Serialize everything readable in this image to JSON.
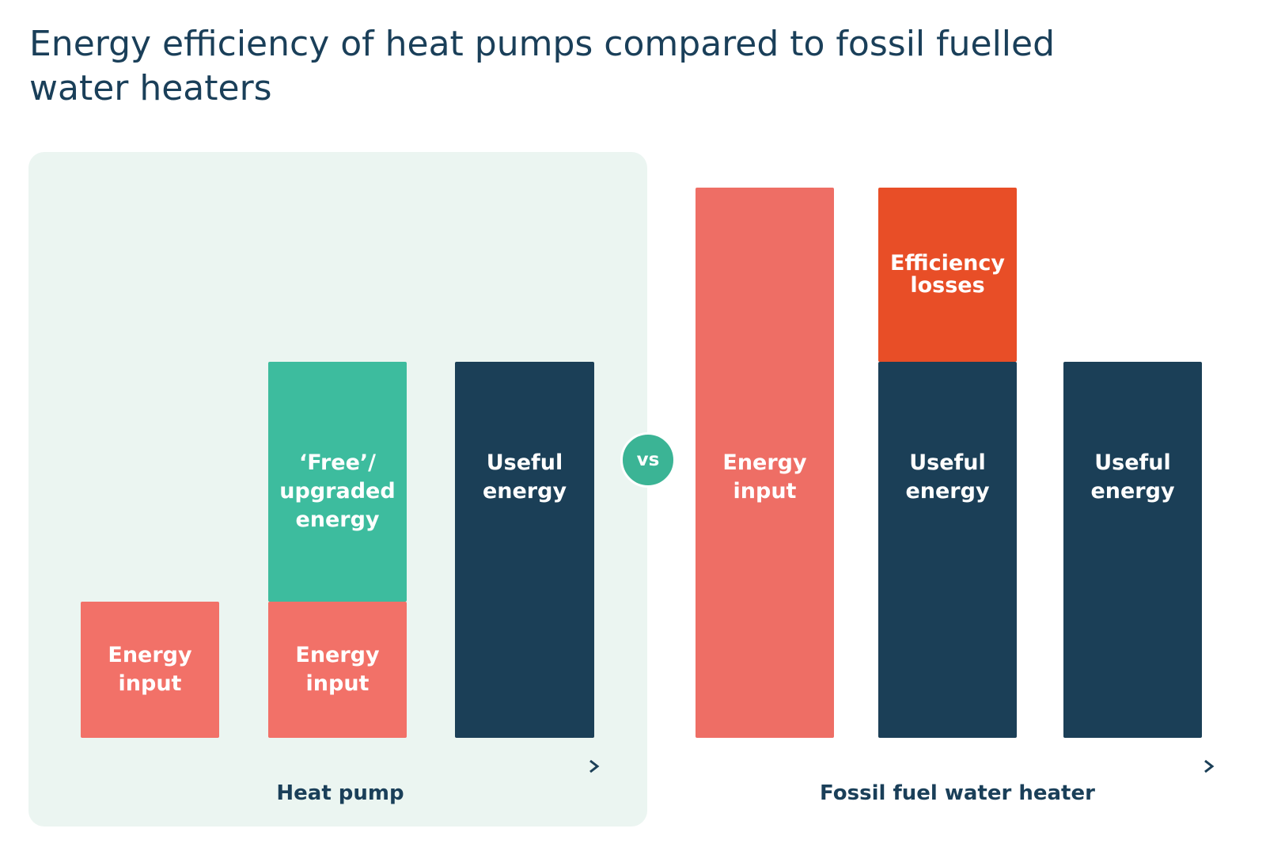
{
  "title": {
    "line1": "Energy efficiency of heat pumps compared to fossil fuelled",
    "line2": "water heaters"
  },
  "heat_pump": {
    "label": "Heat pump",
    "bar1": {
      "line1": "Energy",
      "line2": "input"
    },
    "bar2_top": {
      "line1": "‘Free’/",
      "line2": "upgraded",
      "line3": "energy"
    },
    "bar2_bottom": {
      "line1": "Energy",
      "line2": "input"
    },
    "bar3": {
      "line1": "Useful",
      "line2": "energy"
    }
  },
  "vs_label": "vs",
  "fossil": {
    "label": "Fossil fuel water heater",
    "bar1": {
      "line1": "Energy",
      "line2": "input"
    },
    "bar2_top": {
      "line1": "Efficiency",
      "line2": "losses"
    },
    "bar2_bottom": {
      "line1": "Useful",
      "line2": "energy"
    },
    "bar3": {
      "line1": "Useful",
      "line2": "energy"
    }
  },
  "colors": {
    "energy_input": "#f27168",
    "free_energy": "#3dbc9e",
    "useful_energy": "#1b3f57",
    "efficiency_losses": "#e84e27",
    "panel_background": "#ebf5f1",
    "title": "#1a3f59"
  }
}
